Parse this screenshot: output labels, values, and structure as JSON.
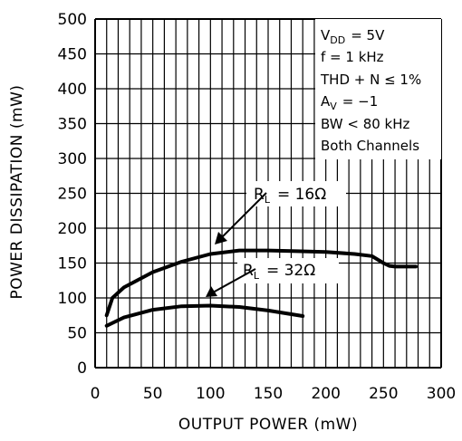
{
  "chart_data": {
    "type": "line",
    "xlabel": "OUTPUT POWER (mW)",
    "ylabel": "POWER DISSIPATION (mW)",
    "xlim": [
      0,
      300
    ],
    "ylim": [
      0,
      500
    ],
    "x_ticks": [
      "0",
      "50",
      "100",
      "150",
      "200",
      "250",
      "300"
    ],
    "y_ticks": [
      "0",
      "50",
      "100",
      "150",
      "200",
      "250",
      "300",
      "350",
      "400",
      "450",
      "500"
    ],
    "grid": true,
    "conditions": {
      "vdd": {
        "main": "V",
        "sub": "DD",
        "rest": "= 5V"
      },
      "freq": "f = 1 kHz",
      "thd": "THD + N ≤ 1%",
      "av": {
        "main": "A",
        "sub": "V",
        "rest": "= −1"
      },
      "bw": "BW < 80 kHz",
      "channels": "Both Channels"
    },
    "series": [
      {
        "label": {
          "main": "R",
          "sub": "L",
          "rest": "= 16Ω"
        },
        "x": [
          10,
          15,
          25,
          50,
          75,
          100,
          125,
          150,
          175,
          200,
          225,
          240,
          250,
          255,
          260,
          270,
          278
        ],
        "y": [
          75,
          100,
          115,
          137,
          152,
          163,
          168,
          168,
          167,
          166,
          163,
          160,
          150,
          146,
          145,
          145,
          145
        ]
      },
      {
        "label": {
          "main": "R",
          "sub": "L",
          "rest": "= 32Ω"
        },
        "x": [
          10,
          25,
          50,
          75,
          100,
          125,
          150,
          180
        ],
        "y": [
          60,
          72,
          83,
          88,
          89,
          87,
          82,
          74
        ]
      }
    ]
  }
}
